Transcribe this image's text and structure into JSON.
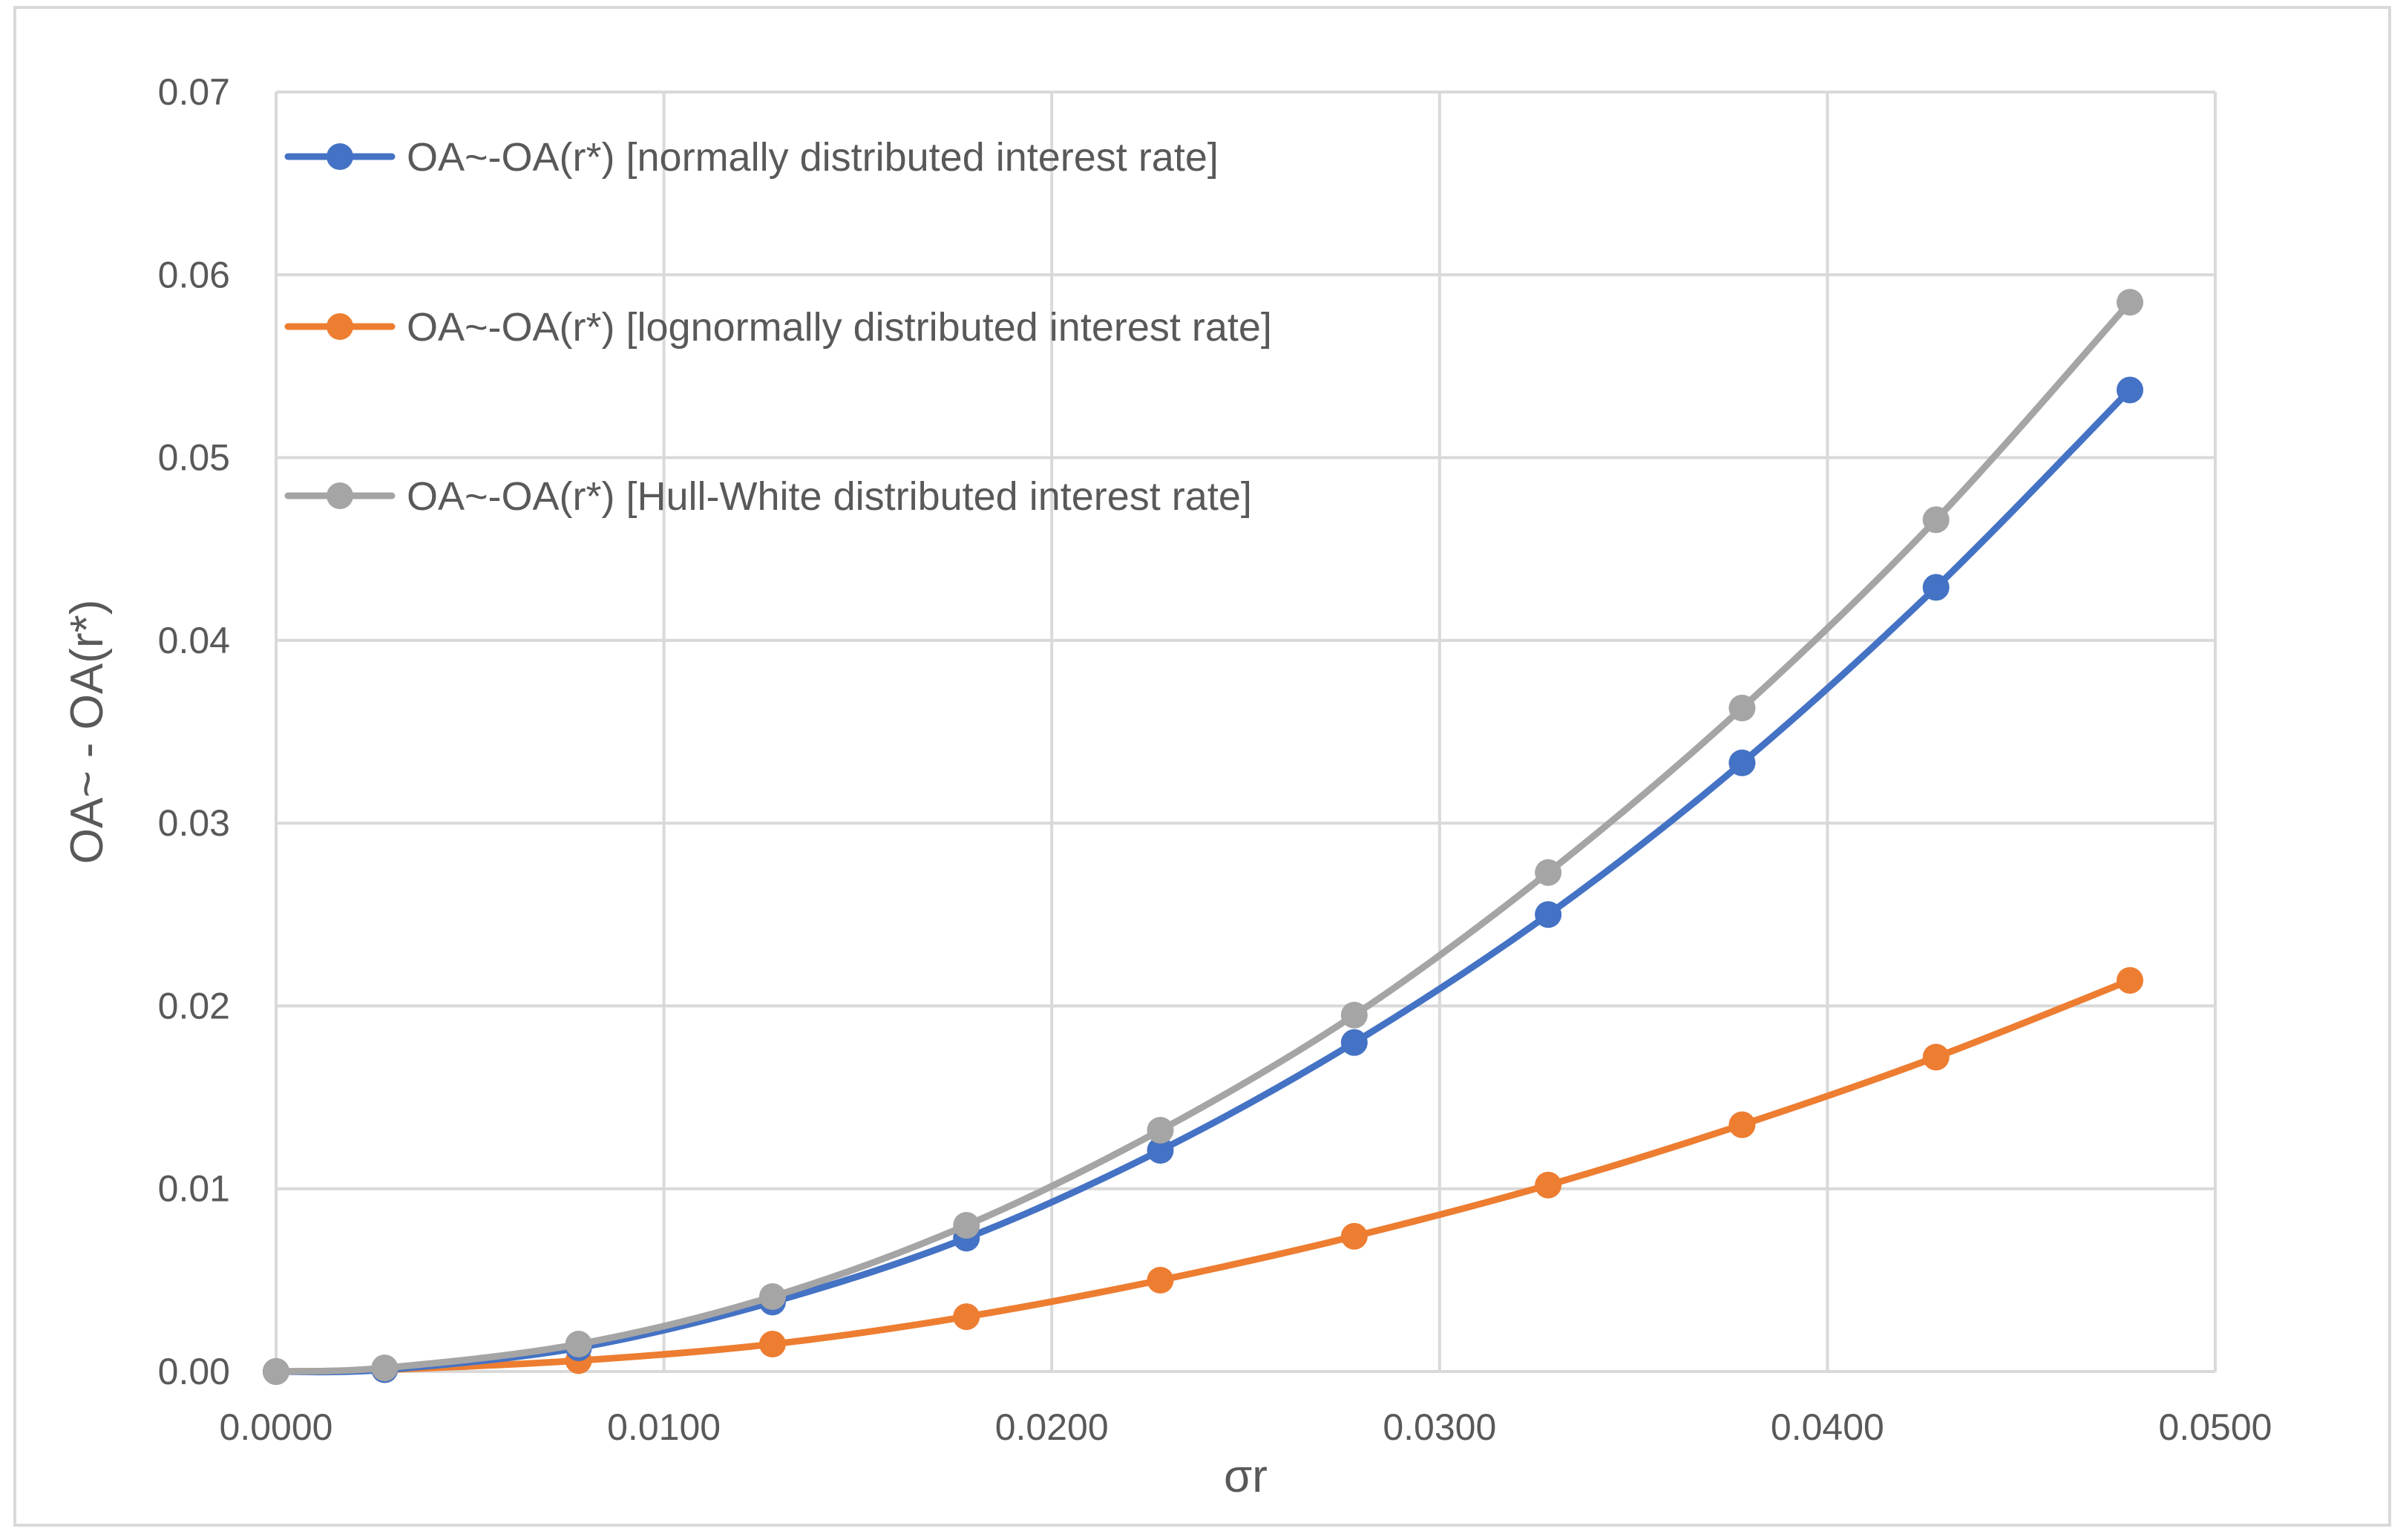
{
  "chart_data": {
    "type": "line",
    "title": "",
    "xlabel": "σr",
    "ylabel": "OA~ - OA(r*)",
    "xlim": [
      0.0,
      0.05
    ],
    "ylim": [
      0.0,
      0.07
    ],
    "x_tick_labels": [
      "0.0000",
      "0.0100",
      "0.0200",
      "0.0300",
      "0.0400",
      "0.0500"
    ],
    "x_ticks": [
      0.0,
      0.01,
      0.02,
      0.03,
      0.04,
      0.05
    ],
    "y_tick_labels": [
      "0.00",
      "0.01",
      "0.02",
      "0.03",
      "0.04",
      "0.05",
      "0.06",
      "0.07"
    ],
    "y_ticks": [
      0.0,
      0.01,
      0.02,
      0.03,
      0.04,
      0.05,
      0.06,
      0.07
    ],
    "grid": true,
    "legend_position": "top-left",
    "x": [
      0.0,
      0.0028,
      0.0078,
      0.0128,
      0.0178,
      0.0228,
      0.0278,
      0.0328,
      0.0378,
      0.0428,
      0.0478
    ],
    "series": [
      {
        "name": "OA~-OA(r*) [normally distributed interest rate]",
        "color": "#4472C4",
        "values": [
          0.0,
          0.0001,
          0.0013,
          0.0038,
          0.0073,
          0.0121,
          0.018,
          0.025,
          0.0333,
          0.0429,
          0.0537
        ]
      },
      {
        "name": "OA~-OA(r*) [lognormally distributed interest rate]",
        "color": "#ED7D31",
        "values": [
          0.0,
          0.0001,
          0.0006,
          0.0015,
          0.003,
          0.005,
          0.0074,
          0.0102,
          0.0135,
          0.0172,
          0.0214
        ]
      },
      {
        "name": "OA~-OA(r*) [Hull-White distributed interest rate]",
        "color": "#A5A5A5",
        "values": [
          0.0,
          0.0002,
          0.0015,
          0.0041,
          0.008,
          0.0132,
          0.0195,
          0.0273,
          0.0363,
          0.0466,
          0.0585
        ]
      }
    ]
  }
}
